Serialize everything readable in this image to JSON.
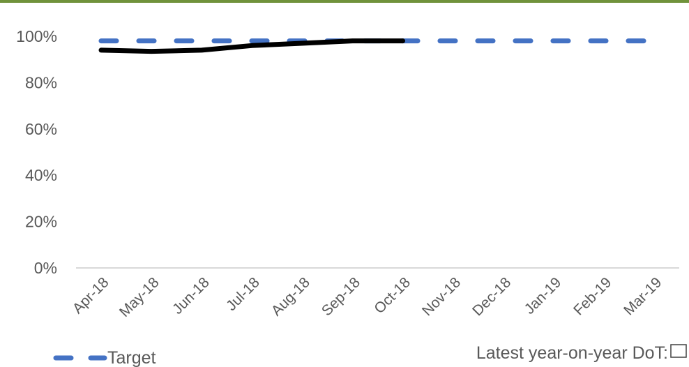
{
  "colors": {
    "top_rule": "#70923b",
    "target": "#4472c4",
    "actual": "#000000",
    "axis": "#d9d9d9",
    "tick_text": "#595959"
  },
  "chart_data": {
    "type": "line",
    "categories": [
      "Apr-18",
      "May-18",
      "Jun-18",
      "Jul-18",
      "Aug-18",
      "Sep-18",
      "Oct-18",
      "Nov-18",
      "Dec-18",
      "Jan-19",
      "Feb-19",
      "Mar-19"
    ],
    "y_ticks": [
      "0%",
      "20%",
      "40%",
      "60%",
      "80%",
      "100%"
    ],
    "ylim": [
      0,
      100
    ],
    "grid": false,
    "series": [
      {
        "style": "solid",
        "color": "#000000",
        "values": [
          94,
          93.5,
          94,
          96,
          97,
          98,
          98,
          null,
          null,
          null,
          null,
          null
        ]
      },
      {
        "name": "Target",
        "style": "dashed",
        "color": "#4472c4",
        "values": [
          98,
          98,
          98,
          98,
          98,
          98,
          98,
          98,
          98,
          98,
          98,
          98
        ]
      }
    ],
    "legend": {
      "position": "bottom-left",
      "entries": [
        "Target"
      ]
    },
    "footer_text": "Latest year-on-year DoT:"
  }
}
